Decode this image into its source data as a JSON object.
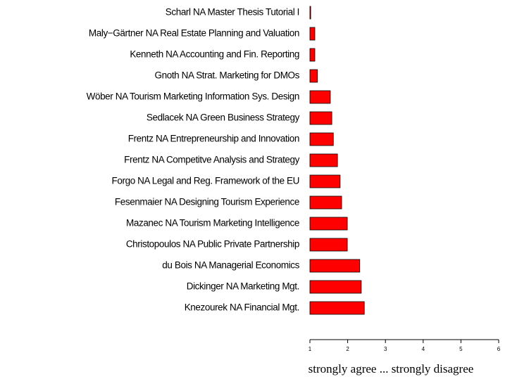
{
  "chart_data": {
    "type": "barh",
    "xlabel": "strongly agree ... strongly disagree",
    "categories": [
      "Scharl NA Master Thesis Tutorial I",
      "Maly−Gärtner NA Real Estate Planning and Valuation",
      "Kenneth NA Accounting and Fin. Reporting",
      "Gnoth NA Strat. Marketing for DMOs",
      "Wöber NA Tourism Marketing Information Sys. Design",
      "Sedlacek NA Green Business Strategy",
      "Frentz NA Entrepreneurship and Innovation",
      "Frentz NA Competitve Analysis and Strategy",
      "Forgo NA Legal and Reg. Framework of the EU",
      "Fesenmaier NA Designing Tourism Experience",
      "Mazanec NA Tourism Marketing Intelligence",
      "Christopoulos NA Public Private Partnership",
      "du Bois NA Managerial Economics",
      "Dickinger NA Marketing Mgt.",
      "Knezourek NA Financial Mgt."
    ],
    "values": [
      1.02,
      1.13,
      1.13,
      1.2,
      1.54,
      1.58,
      1.62,
      1.73,
      1.8,
      1.84,
      1.99,
      1.99,
      2.32,
      2.36,
      2.44
    ],
    "color": "#ff0000",
    "xlim": [
      1,
      6
    ],
    "xticks": [
      1,
      2,
      3,
      4,
      5,
      6
    ]
  }
}
